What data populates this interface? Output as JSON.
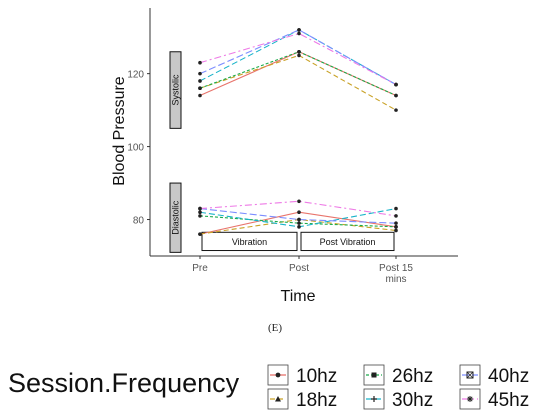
{
  "caption": "(E)",
  "legend": {
    "title": "Session.Frequency",
    "items": [
      {
        "label": "10hz",
        "color": "#e8746c",
        "dash": "",
        "marker": "circle"
      },
      {
        "label": "18hz",
        "color": "#c9a227",
        "dash": "5,3",
        "marker": "triangle"
      },
      {
        "label": "26hz",
        "color": "#1aab4a",
        "dash": "3,2",
        "marker": "square"
      },
      {
        "label": "30hz",
        "color": "#18b3c9",
        "dash": "6,3",
        "marker": "plus"
      },
      {
        "label": "40hz",
        "color": "#7c8dff",
        "dash": "7,3",
        "marker": "boxx"
      },
      {
        "label": "45hz",
        "color": "#ee7ae6",
        "dash": "7,3,2,3",
        "marker": "asterisk"
      }
    ]
  },
  "chart_data": {
    "type": "line",
    "xlabel": "Time",
    "ylabel": "Blood Pressure",
    "categories": [
      "Pre",
      "Post",
      "Post 15\nmins"
    ],
    "ylim": [
      70,
      138
    ],
    "yticks": [
      80,
      100,
      120
    ],
    "grid": false,
    "systolic": [
      {
        "name": "10hz",
        "values": [
          114,
          126,
          114
        ]
      },
      {
        "name": "18hz",
        "values": [
          116,
          125,
          110
        ]
      },
      {
        "name": "26hz",
        "values": [
          116,
          126,
          114
        ]
      },
      {
        "name": "30hz",
        "values": [
          118,
          132,
          117
        ]
      },
      {
        "name": "40hz",
        "values": [
          120,
          132,
          117
        ]
      },
      {
        "name": "45hz",
        "values": [
          123,
          131,
          117
        ]
      }
    ],
    "diastolic": [
      {
        "name": "10hz",
        "values": [
          76,
          82,
          78
        ]
      },
      {
        "name": "18hz",
        "values": [
          76,
          80,
          77
        ]
      },
      {
        "name": "26hz",
        "values": [
          81,
          79,
          78
        ]
      },
      {
        "name": "30hz",
        "values": [
          82,
          78,
          83
        ]
      },
      {
        "name": "40hz",
        "values": [
          83,
          80,
          79
        ]
      },
      {
        "name": "45hz",
        "values": [
          83,
          85,
          81
        ]
      }
    ],
    "strips": [
      {
        "label": "Systolic",
        "range": [
          105,
          126
        ]
      },
      {
        "label": "Diastolic",
        "range": [
          71,
          90
        ]
      }
    ],
    "phases": [
      {
        "label": "Vibration",
        "from": 0,
        "to": 1
      },
      {
        "label": "Post Vibration",
        "from": 1,
        "to": 2
      }
    ],
    "phase_band": [
      71.5,
      76.5
    ]
  }
}
